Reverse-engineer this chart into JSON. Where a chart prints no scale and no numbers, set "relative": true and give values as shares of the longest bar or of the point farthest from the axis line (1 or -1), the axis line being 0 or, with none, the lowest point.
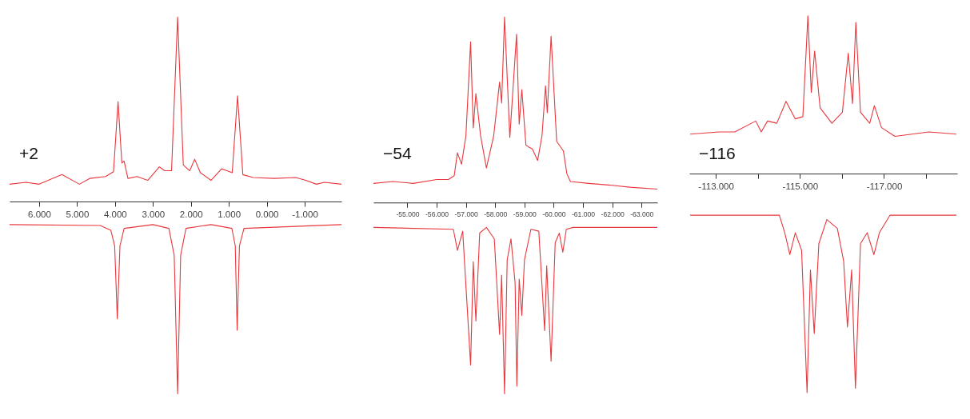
{
  "chart_data": [
    {
      "type": "line",
      "relative": true,
      "annotations": [
        "+2"
      ],
      "xlim": [
        6.78,
        -1.97
      ],
      "xticks": [
        {
          "value": 6,
          "label": "6.000"
        },
        {
          "value": 5,
          "label": "5.000"
        },
        {
          "value": 4,
          "label": "4.000"
        },
        {
          "value": 3,
          "label": "3.000"
        },
        {
          "value": 2,
          "label": "2.000"
        },
        {
          "value": 1,
          "label": "1.000"
        },
        {
          "value": 0,
          "label": "0.000"
        },
        {
          "value": -1,
          "label": "-1.000"
        }
      ],
      "grid": false,
      "marker": "none",
      "line_style": "solid",
      "series": [
        {
          "color": "#e8383d",
          "x": [
            6.78,
            6.35,
            6.0,
            5.4,
            4.94,
            4.67,
            4.25,
            4.04,
            3.92,
            3.82,
            3.76,
            3.66,
            3.42,
            3.14,
            2.83,
            2.69,
            2.51,
            2.35,
            2.2,
            2.03,
            1.9,
            1.75,
            1.47,
            1.19,
            1.05,
            0.91,
            0.77,
            0.63,
            0.36,
            -0.2,
            -0.76,
            -1.03,
            -1.31,
            -1.52,
            -1.97
          ],
          "values": [
            0.09,
            0.1,
            0.09,
            0.14,
            0.09,
            0.12,
            0.13,
            0.155,
            0.52,
            0.2,
            0.21,
            0.12,
            0.13,
            0.11,
            0.18,
            0.16,
            0.16,
            0.96,
            0.19,
            0.16,
            0.22,
            0.15,
            0.11,
            0.17,
            0.16,
            0.15,
            0.55,
            0.14,
            0.125,
            0.12,
            0.125,
            0.11,
            0.09,
            0.1,
            0.09
          ]
        },
        {
          "color": "#e8383d",
          "x": [
            6.78,
            4.39,
            4.11,
            4.01,
            3.94,
            3.87,
            3.76,
            3.0,
            2.58,
            2.44,
            2.35,
            2.27,
            2.13,
            1.47,
            0.92,
            0.83,
            0.78,
            0.72,
            0.6,
            -1.97
          ],
          "values": [
            -0.12,
            -0.125,
            -0.15,
            -0.23,
            -0.61,
            -0.23,
            -0.14,
            -0.12,
            -0.14,
            -0.28,
            -1.0,
            -0.28,
            -0.14,
            -0.12,
            -0.14,
            -0.23,
            -0.67,
            -0.23,
            -0.14,
            -0.12
          ]
        }
      ]
    },
    {
      "type": "line",
      "relative": true,
      "annotations": [
        "−54"
      ],
      "xlim": [
        -53.84,
        -63.54
      ],
      "xticks": [
        {
          "value": -55,
          "label": "-55.000"
        },
        {
          "value": -56,
          "label": "-56.000"
        },
        {
          "value": -57,
          "label": "-57.000"
        },
        {
          "value": -58,
          "label": "-58.000"
        },
        {
          "value": -59,
          "label": "-59.000"
        },
        {
          "value": -60,
          "label": "-60.000"
        },
        {
          "value": -61,
          "label": "-61.000"
        },
        {
          "value": -62,
          "label": "-62.000"
        },
        {
          "value": -63,
          "label": "-63.000"
        }
      ],
      "grid": false,
      "marker": "none",
      "line_style": "solid",
      "series": [
        {
          "color": "#e8383d",
          "x": [
            -53.84,
            -54.5,
            -55.2,
            -56.0,
            -56.4,
            -56.6,
            -56.71,
            -56.85,
            -57.0,
            -57.16,
            -57.25,
            -57.34,
            -57.5,
            -57.7,
            -57.95,
            -58.15,
            -58.22,
            -58.32,
            -58.5,
            -58.73,
            -58.82,
            -58.91,
            -59.05,
            -59.15,
            -59.27,
            -59.45,
            -59.6,
            -59.72,
            -59.78,
            -59.91,
            -60.1,
            -60.33,
            -60.45,
            -60.57,
            -61.2,
            -62.0,
            -62.6,
            -63.54
          ],
          "values": [
            0.1,
            0.11,
            0.1,
            0.12,
            0.12,
            0.14,
            0.26,
            0.2,
            0.35,
            0.84,
            0.39,
            0.57,
            0.35,
            0.18,
            0.35,
            0.63,
            0.52,
            0.97,
            0.34,
            0.88,
            0.41,
            0.59,
            0.3,
            0.29,
            0.28,
            0.22,
            0.35,
            0.61,
            0.47,
            0.87,
            0.32,
            0.27,
            0.15,
            0.11,
            0.1,
            0.09,
            0.08,
            0.07
          ]
        },
        {
          "color": "#e8383d",
          "x": [
            -53.84,
            -56.57,
            -56.71,
            -56.89,
            -57.16,
            -57.25,
            -57.34,
            -57.47,
            -57.7,
            -57.97,
            -58.15,
            -58.22,
            -58.32,
            -58.41,
            -58.54,
            -58.68,
            -58.74,
            -58.82,
            -58.91,
            -59.0,
            -59.22,
            -59.49,
            -59.69,
            -59.76,
            -59.91,
            -60.05,
            -60.19,
            -60.31,
            -60.43,
            -60.66,
            -63.54
          ],
          "values": [
            -0.13,
            -0.14,
            -0.25,
            -0.15,
            -0.85,
            -0.31,
            -0.62,
            -0.16,
            -0.13,
            -0.19,
            -0.69,
            -0.38,
            -1.0,
            -0.3,
            -0.19,
            -0.42,
            -0.96,
            -0.4,
            -0.59,
            -0.3,
            -0.14,
            -0.15,
            -0.67,
            -0.33,
            -0.83,
            -0.21,
            -0.16,
            -0.26,
            -0.14,
            -0.13,
            -0.13
          ]
        }
      ]
    },
    {
      "type": "line",
      "relative": true,
      "annotations": [
        "−116"
      ],
      "xlim": [
        -112.37,
        -118.74
      ],
      "xticks": [
        {
          "value": -113,
          "label": "-113.000"
        },
        {
          "value": -114,
          "label": null
        },
        {
          "value": -115,
          "label": "-115.000"
        },
        {
          "value": -116,
          "label": null
        },
        {
          "value": -117,
          "label": "-117.000"
        },
        {
          "value": -118,
          "label": null
        }
      ],
      "grid": false,
      "marker": "none",
      "line_style": "solid",
      "series": [
        {
          "color": "#e8383d",
          "x": [
            -112.39,
            -113.08,
            -113.45,
            -113.95,
            -114.08,
            -114.23,
            -114.45,
            -114.67,
            -114.89,
            -115.07,
            -115.19,
            -115.27,
            -115.35,
            -115.48,
            -115.76,
            -116.01,
            -116.15,
            -116.25,
            -116.33,
            -116.44,
            -116.66,
            -116.77,
            -116.94,
            -117.26,
            -118.07,
            -118.72
          ],
          "values": [
            0.18,
            0.19,
            0.19,
            0.24,
            0.19,
            0.24,
            0.23,
            0.33,
            0.25,
            0.26,
            0.72,
            0.37,
            0.56,
            0.3,
            0.23,
            0.28,
            0.55,
            0.32,
            0.69,
            0.28,
            0.23,
            0.31,
            0.21,
            0.17,
            0.19,
            0.18
          ]
        },
        {
          "color": "#e8383d",
          "x": [
            -112.39,
            -114.51,
            -114.64,
            -114.76,
            -114.89,
            -115.04,
            -115.17,
            -115.25,
            -115.34,
            -115.45,
            -115.64,
            -115.89,
            -116.04,
            -116.13,
            -116.23,
            -116.32,
            -116.44,
            -116.6,
            -116.76,
            -116.89,
            -117.14,
            -118.72
          ],
          "values": [
            -0.19,
            -0.19,
            -0.27,
            -0.37,
            -0.27,
            -0.35,
            -1.0,
            -0.44,
            -0.73,
            -0.32,
            -0.21,
            -0.25,
            -0.4,
            -0.7,
            -0.44,
            -0.98,
            -0.32,
            -0.27,
            -0.37,
            -0.27,
            -0.19,
            -0.19
          ]
        }
      ]
    }
  ]
}
